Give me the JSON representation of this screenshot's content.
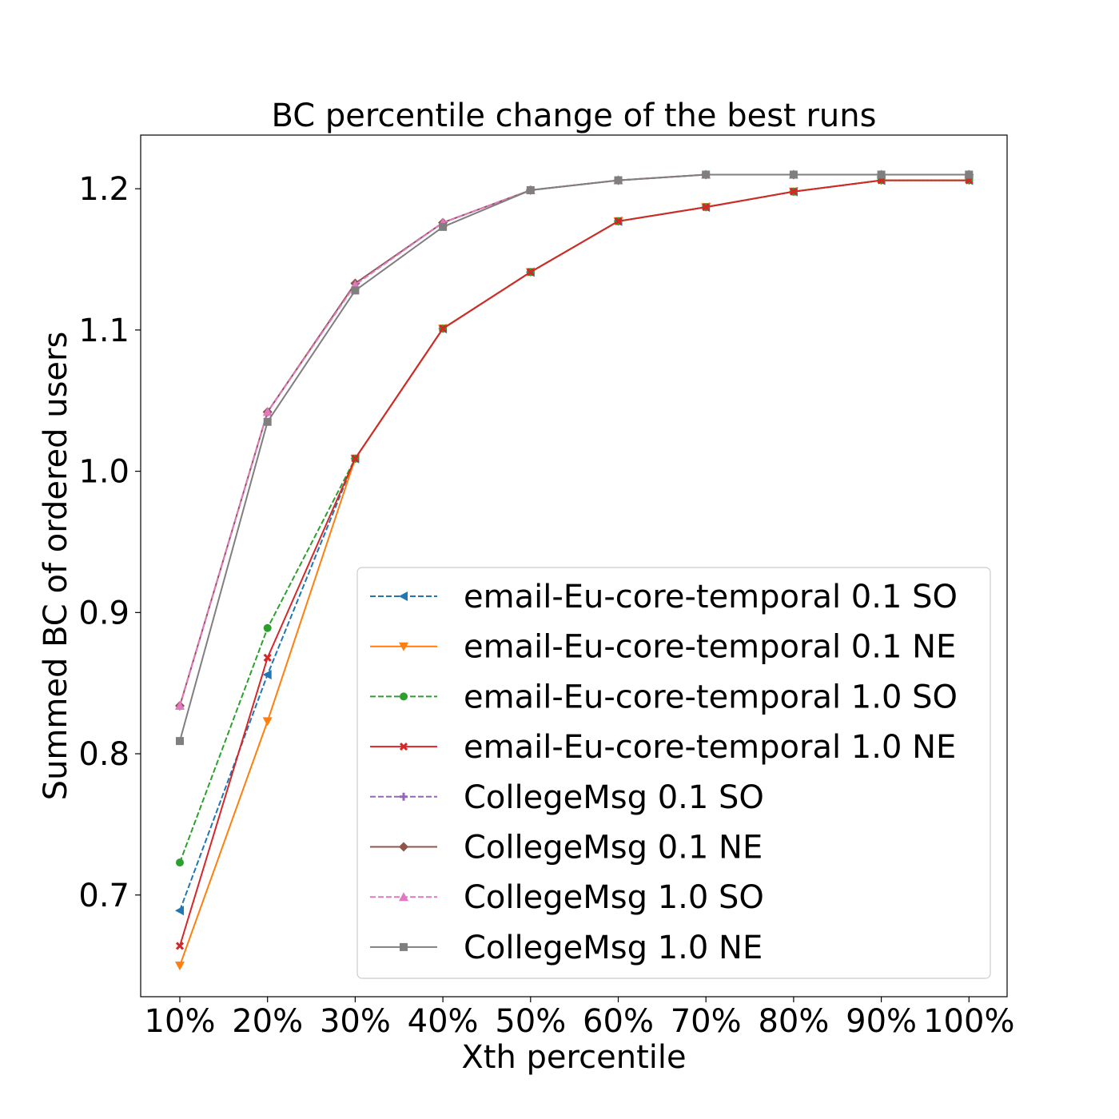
{
  "chart_data": {
    "type": "line",
    "title": "BC percentile change of the best runs",
    "xlabel": "Xth percentile",
    "ylabel": "Summed BC of ordered users",
    "categories": [
      "10%",
      "20%",
      "30%",
      "40%",
      "50%",
      "60%",
      "70%",
      "80%",
      "90%",
      "100%"
    ],
    "ylim": [
      0.628,
      1.238
    ],
    "yticks": [
      "0.7",
      "0.8",
      "0.9",
      "1.0",
      "1.1",
      "1.2"
    ],
    "ytick_values": [
      0.7,
      0.8,
      0.9,
      1.0,
      1.1,
      1.2
    ],
    "grid": false,
    "legend_position": "lower-right",
    "series": [
      {
        "name": "email-Eu-core-temporal 0.1 SO",
        "color": "#1f77b4",
        "dash": "dashed",
        "marker": "triangle-left",
        "values": [
          0.689,
          0.856,
          1.009,
          1.101,
          1.141,
          1.177,
          1.187,
          1.198,
          1.206,
          1.206
        ]
      },
      {
        "name": "email-Eu-core-temporal 0.1 NE",
        "color": "#ff7f0e",
        "dash": "solid",
        "marker": "triangle-down",
        "values": [
          0.65,
          0.823,
          1.009,
          1.101,
          1.141,
          1.177,
          1.187,
          1.198,
          1.206,
          1.206
        ]
      },
      {
        "name": "email-Eu-core-temporal 1.0 SO",
        "color": "#2ca02c",
        "dash": "dashed",
        "marker": "circle",
        "values": [
          0.723,
          0.889,
          1.009,
          1.101,
          1.141,
          1.177,
          1.187,
          1.198,
          1.206,
          1.206
        ]
      },
      {
        "name": "email-Eu-core-temporal 1.0 NE",
        "color": "#d62728",
        "dash": "solid",
        "marker": "x",
        "values": [
          0.664,
          0.868,
          1.009,
          1.101,
          1.141,
          1.177,
          1.187,
          1.198,
          1.206,
          1.206
        ]
      },
      {
        "name": "CollegeMsg 0.1 SO",
        "color": "#9467bd",
        "dash": "dashed",
        "marker": "plus",
        "values": [
          0.834,
          1.042,
          1.133,
          1.176,
          1.199,
          1.206,
          1.21,
          1.21,
          1.21,
          1.21
        ]
      },
      {
        "name": "CollegeMsg 0.1 NE",
        "color": "#8c564b",
        "dash": "solid",
        "marker": "diamond",
        "values": [
          0.834,
          1.042,
          1.133,
          1.176,
          1.199,
          1.206,
          1.21,
          1.21,
          1.21,
          1.21
        ]
      },
      {
        "name": "CollegeMsg 1.0 SO",
        "color": "#e377c2",
        "dash": "dashed",
        "marker": "triangle-up",
        "values": [
          0.834,
          1.042,
          1.132,
          1.176,
          1.199,
          1.206,
          1.21,
          1.21,
          1.21,
          1.21
        ]
      },
      {
        "name": "CollegeMsg 1.0 NE",
        "color": "#7f7f7f",
        "dash": "solid",
        "marker": "square",
        "values": [
          0.809,
          1.035,
          1.128,
          1.173,
          1.199,
          1.206,
          1.21,
          1.21,
          1.21,
          1.21
        ]
      }
    ]
  }
}
